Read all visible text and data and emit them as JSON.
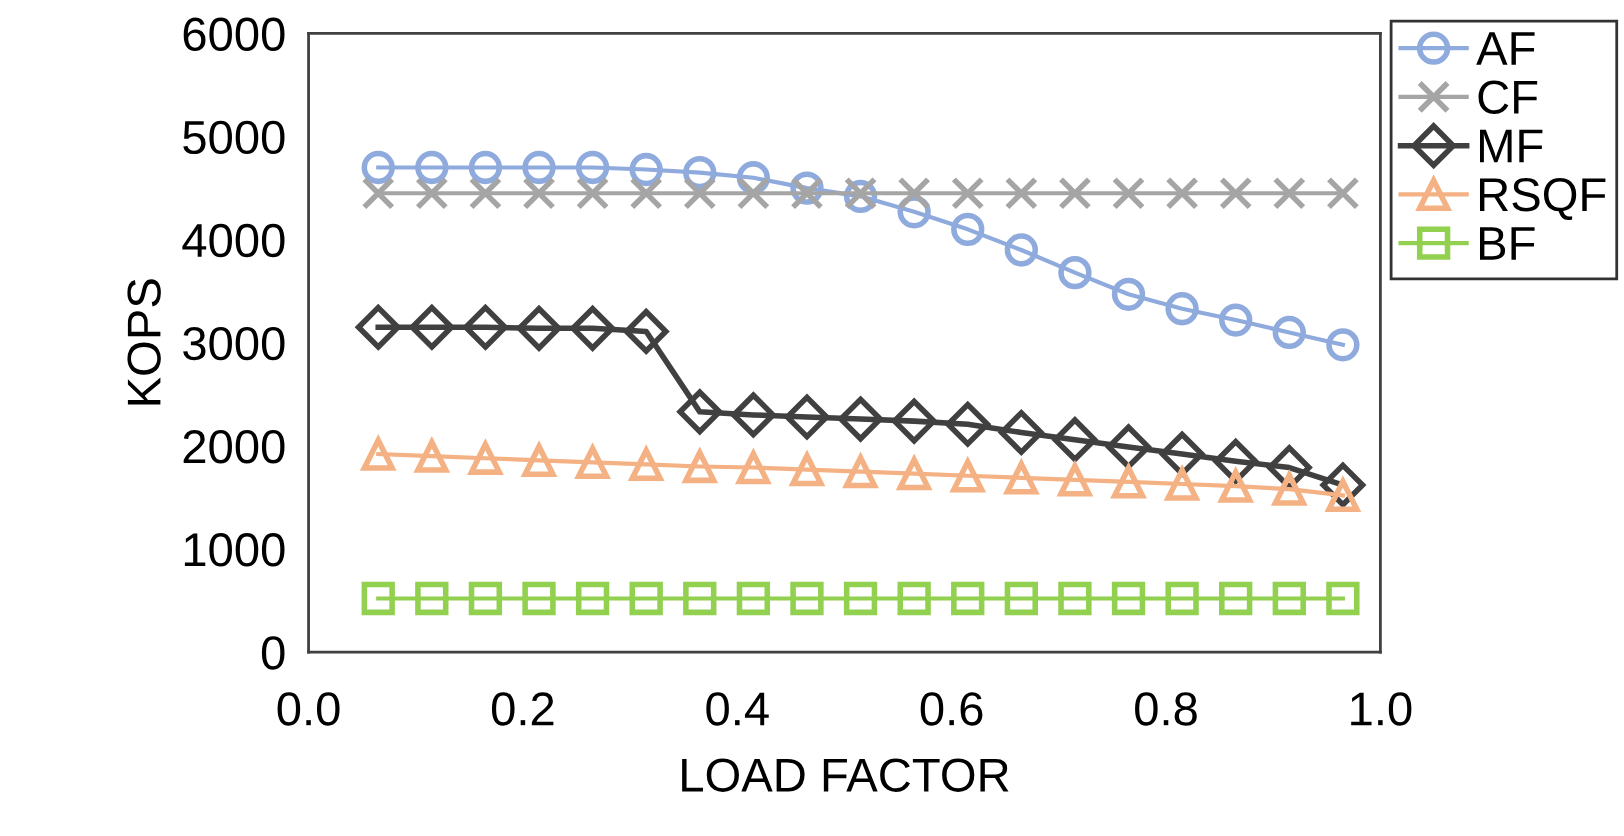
{
  "chart_data": {
    "type": "line",
    "xlabel": "LOAD FACTOR",
    "ylabel": "KOPS",
    "x": [
      0.065,
      0.115,
      0.165,
      0.215,
      0.265,
      0.315,
      0.365,
      0.415,
      0.465,
      0.515,
      0.565,
      0.615,
      0.665,
      0.715,
      0.765,
      0.815,
      0.865,
      0.915,
      0.965
    ],
    "xlim": [
      0,
      1
    ],
    "xticks": [
      {
        "value": 0,
        "label": "0.0"
      },
      {
        "value": 0.2,
        "label": "0.2"
      },
      {
        "value": 0.4,
        "label": "0.4"
      },
      {
        "value": 0.6,
        "label": "0.6"
      },
      {
        "value": 0.8,
        "label": "0.8"
      },
      {
        "value": 1,
        "label": "1.0"
      }
    ],
    "ylim": [
      0,
      6000
    ],
    "yticks": [
      0,
      1000,
      2000,
      3000,
      4000,
      5000,
      6000
    ],
    "grid": false,
    "legend": "top right",
    "series": [
      {
        "name": "AF",
        "color": "#8faadc",
        "marker": "circle",
        "values": [
          4700,
          4700,
          4700,
          4700,
          4700,
          4680,
          4650,
          4600,
          4500,
          4420,
          4270,
          4100,
          3900,
          3680,
          3470,
          3330,
          3220,
          3100,
          2980
        ]
      },
      {
        "name": "CF",
        "color": "#a5a5a5",
        "marker": "cross",
        "values": [
          4450,
          4450,
          4450,
          4450,
          4450,
          4450,
          4450,
          4450,
          4450,
          4450,
          4450,
          4450,
          4450,
          4450,
          4450,
          4450,
          4450,
          4450,
          4450
        ]
      },
      {
        "name": "MF",
        "color": "#404040",
        "marker": "diamond",
        "values": [
          3150,
          3150,
          3150,
          3140,
          3140,
          3110,
          2330,
          2300,
          2280,
          2260,
          2240,
          2210,
          2130,
          2060,
          1990,
          1920,
          1850,
          1790,
          1620
        ]
      },
      {
        "name": "RSQF",
        "color": "#f4b183",
        "marker": "triangle",
        "values": [
          1920,
          1900,
          1880,
          1860,
          1840,
          1820,
          1800,
          1790,
          1770,
          1750,
          1730,
          1710,
          1690,
          1670,
          1650,
          1630,
          1610,
          1580,
          1520
        ]
      },
      {
        "name": "BF",
        "color": "#92d050",
        "marker": "square",
        "values": [
          520,
          520,
          520,
          520,
          520,
          520,
          520,
          520,
          520,
          520,
          520,
          520,
          520,
          520,
          520,
          520,
          520,
          520,
          520
        ]
      }
    ]
  }
}
